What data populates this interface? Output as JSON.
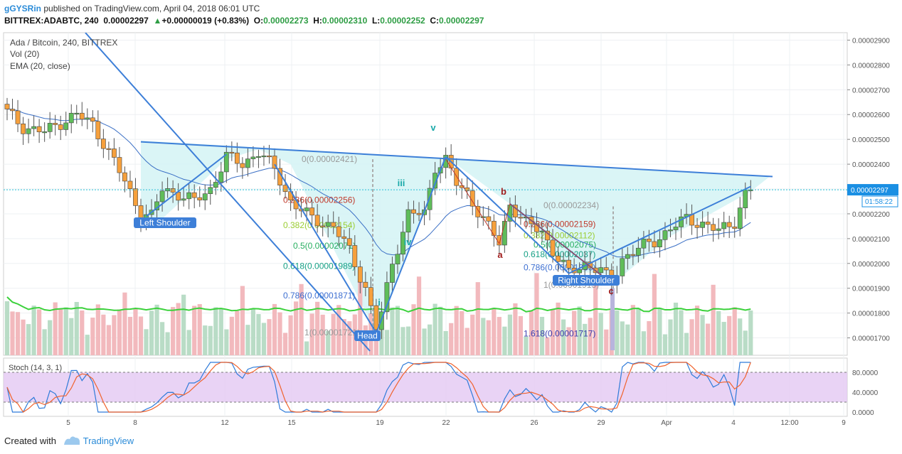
{
  "header": {
    "username": "gGYSRin",
    "published_text": "published on TradingView.com, April 04, 2018 06:01 UTC",
    "symbol": "BITTREX:ADABTC, 240",
    "last": "0.00002297",
    "change_arrow": "▲",
    "change": "+0.00000019 (+0.83%)",
    "o_label": "O:",
    "o_value": "0.00002273",
    "h_label": "H:",
    "h_value": "0.00002310",
    "l_label": "L:",
    "l_value": "0.00002252",
    "c_label": "C:",
    "c_value": "0.00002297"
  },
  "legend": {
    "title": "Ada / Bitcoin, 240, BITTREX",
    "vol": "Vol (20)",
    "ema": "EMA (20, close)"
  },
  "stoch_label": "Stoch (14, 3, 1)",
  "footer": {
    "created_with": "Created with",
    "brand": "TradingView"
  },
  "colors": {
    "up": "#5fbd5a",
    "down": "#f6a03c",
    "line": "#3d7fd8",
    "ema": "#3a6fc5",
    "triangle_fill": "#d4f3f5",
    "vol_up": "#b9dcc6",
    "vol_down": "#f2b9bd",
    "vol_ma": "#3bd13b",
    "stoch_bg": "#e3c8f2",
    "stoch_k": "#2f7bd9",
    "stoch_d": "#f0632d",
    "price_tag": "#1a8fe3"
  },
  "chart_data": {
    "type": "candlestick",
    "title": "Ada / Bitcoin, 240, BITTREX",
    "ylim": [
      1.63e-05,
      2.93e-05
    ],
    "y_ticks": [
      "0.00002900",
      "0.00002800",
      "0.00002700",
      "0.00002600",
      "0.00002500",
      "0.00002400",
      "0.00002300",
      "0.00002200",
      "0.00002100",
      "0.00002000",
      "0.00001900",
      "0.00001800",
      "0.00001700"
    ],
    "x_ticks": [
      "5",
      "8",
      "12",
      "15",
      "19",
      "22",
      "26",
      "29",
      "Apr",
      "4",
      "12:00",
      "9"
    ],
    "current_price": "0.00002297",
    "countdown": "01:58:22",
    "anchors": [
      [
        0,
        2.61e-05
      ],
      [
        3,
        2.55e-05
      ],
      [
        7,
        2.53e-05
      ],
      [
        11,
        2.58e-05
      ],
      [
        13,
        2.6e-05
      ],
      [
        16,
        2.56e-05
      ],
      [
        19,
        2.45e-05
      ],
      [
        22,
        2.33e-05
      ],
      [
        25,
        2.2e-05
      ],
      [
        27,
        2.19e-05
      ],
      [
        29,
        2.3e-05
      ],
      [
        32,
        2.28e-05
      ],
      [
        35,
        2.25e-05
      ],
      [
        38,
        2.3e-05
      ],
      [
        41,
        2.43e-05
      ],
      [
        44,
        2.4e-05
      ],
      [
        47,
        2.45e-05
      ],
      [
        50,
        2.38e-05
      ],
      [
        53,
        2.25e-05
      ],
      [
        57,
        2.18e-05
      ],
      [
        61,
        2.15e-05
      ],
      [
        64,
        2.05e-05
      ],
      [
        67,
        1.9e-05
      ],
      [
        69,
        1.74e-05
      ],
      [
        70,
        1.8e-05
      ],
      [
        72,
        2e-05
      ],
      [
        75,
        2.2e-05
      ],
      [
        78,
        2.2e-05
      ],
      [
        80,
        2.39e-05
      ],
      [
        82,
        2.42e-05
      ],
      [
        84,
        2.32e-05
      ],
      [
        86,
        2.28e-05
      ],
      [
        89,
        2.18e-05
      ],
      [
        92,
        2.08e-05
      ],
      [
        94,
        2.24e-05
      ],
      [
        97,
        2.16e-05
      ],
      [
        100,
        2.13e-05
      ],
      [
        102,
        2.05e-05
      ],
      [
        105,
        1.96e-05
      ],
      [
        108,
        2e-05
      ],
      [
        111,
        1.97e-05
      ],
      [
        113,
        1.92e-05
      ],
      [
        115,
        2.02e-05
      ],
      [
        118,
        2.06e-05
      ],
      [
        121,
        2.09e-05
      ],
      [
        124,
        2.14e-05
      ],
      [
        127,
        2.18e-05
      ],
      [
        130,
        2.16e-05
      ],
      [
        133,
        2.13e-05
      ],
      [
        136,
        2.17e-05
      ],
      [
        138,
        2.28e-05
      ],
      [
        139,
        2.297e-05
      ]
    ],
    "fib_levels": [
      {
        "label": "0(0.00002421)",
        "value": 2.421e-05,
        "color": "#999999"
      },
      {
        "label": "0.236(0.00002256)",
        "value": 2.256e-05,
        "color": "#c0392b"
      },
      {
        "label": "0.382(0.00002154)",
        "value": 2.154e-05,
        "color": "#9acd32"
      },
      {
        "label": "0.5(0.00002071)",
        "value": 2.071e-05,
        "color": "#27ae60"
      },
      {
        "label": "0.618(0.00001989)",
        "value": 1.989e-05,
        "color": "#16a085"
      },
      {
        "label": "0.786(0.00001871)",
        "value": 1.871e-05,
        "color": "#3d6fd1"
      },
      {
        "label": "1(0.00001721)",
        "value": 1.721e-05,
        "color": "#999999"
      }
    ],
    "fib_levels_2": [
      {
        "label": "0(0.00002234)",
        "value": 2.234e-05,
        "color": "#999999"
      },
      {
        "label": "0.236(0.00002159)",
        "value": 2.159e-05,
        "color": "#c0392b"
      },
      {
        "label": "0.382(0.00002112)",
        "value": 2.112e-05,
        "color": "#9acd32"
      },
      {
        "label": "0.5(0.00002075)",
        "value": 2.075e-05,
        "color": "#27ae60"
      },
      {
        "label": "0.618(0.00002037)",
        "value": 2.037e-05,
        "color": "#16a085"
      },
      {
        "label": "0.786(0.00001983)",
        "value": 1.983e-05,
        "color": "#3d6fd1"
      },
      {
        "label": "1(0.00001913)",
        "value": 1.913e-05,
        "color": "#999999"
      },
      {
        "label": "1.618(0.00001717)",
        "value": 1.717e-05,
        "color": "#3d3fb0"
      }
    ],
    "annotations": {
      "left_shoulder": "Left Shoulder",
      "head": "Head",
      "right_shoulder": "Right Shoulder",
      "wave_v": "v",
      "wave_iii": "iii",
      "wave_iv": "iv",
      "wave_i": "i",
      "wave_a": "a",
      "wave_b": "b",
      "wave_c": "c"
    },
    "stoch_ticks": [
      "80.0000",
      "40.0000",
      "0.0000"
    ]
  }
}
